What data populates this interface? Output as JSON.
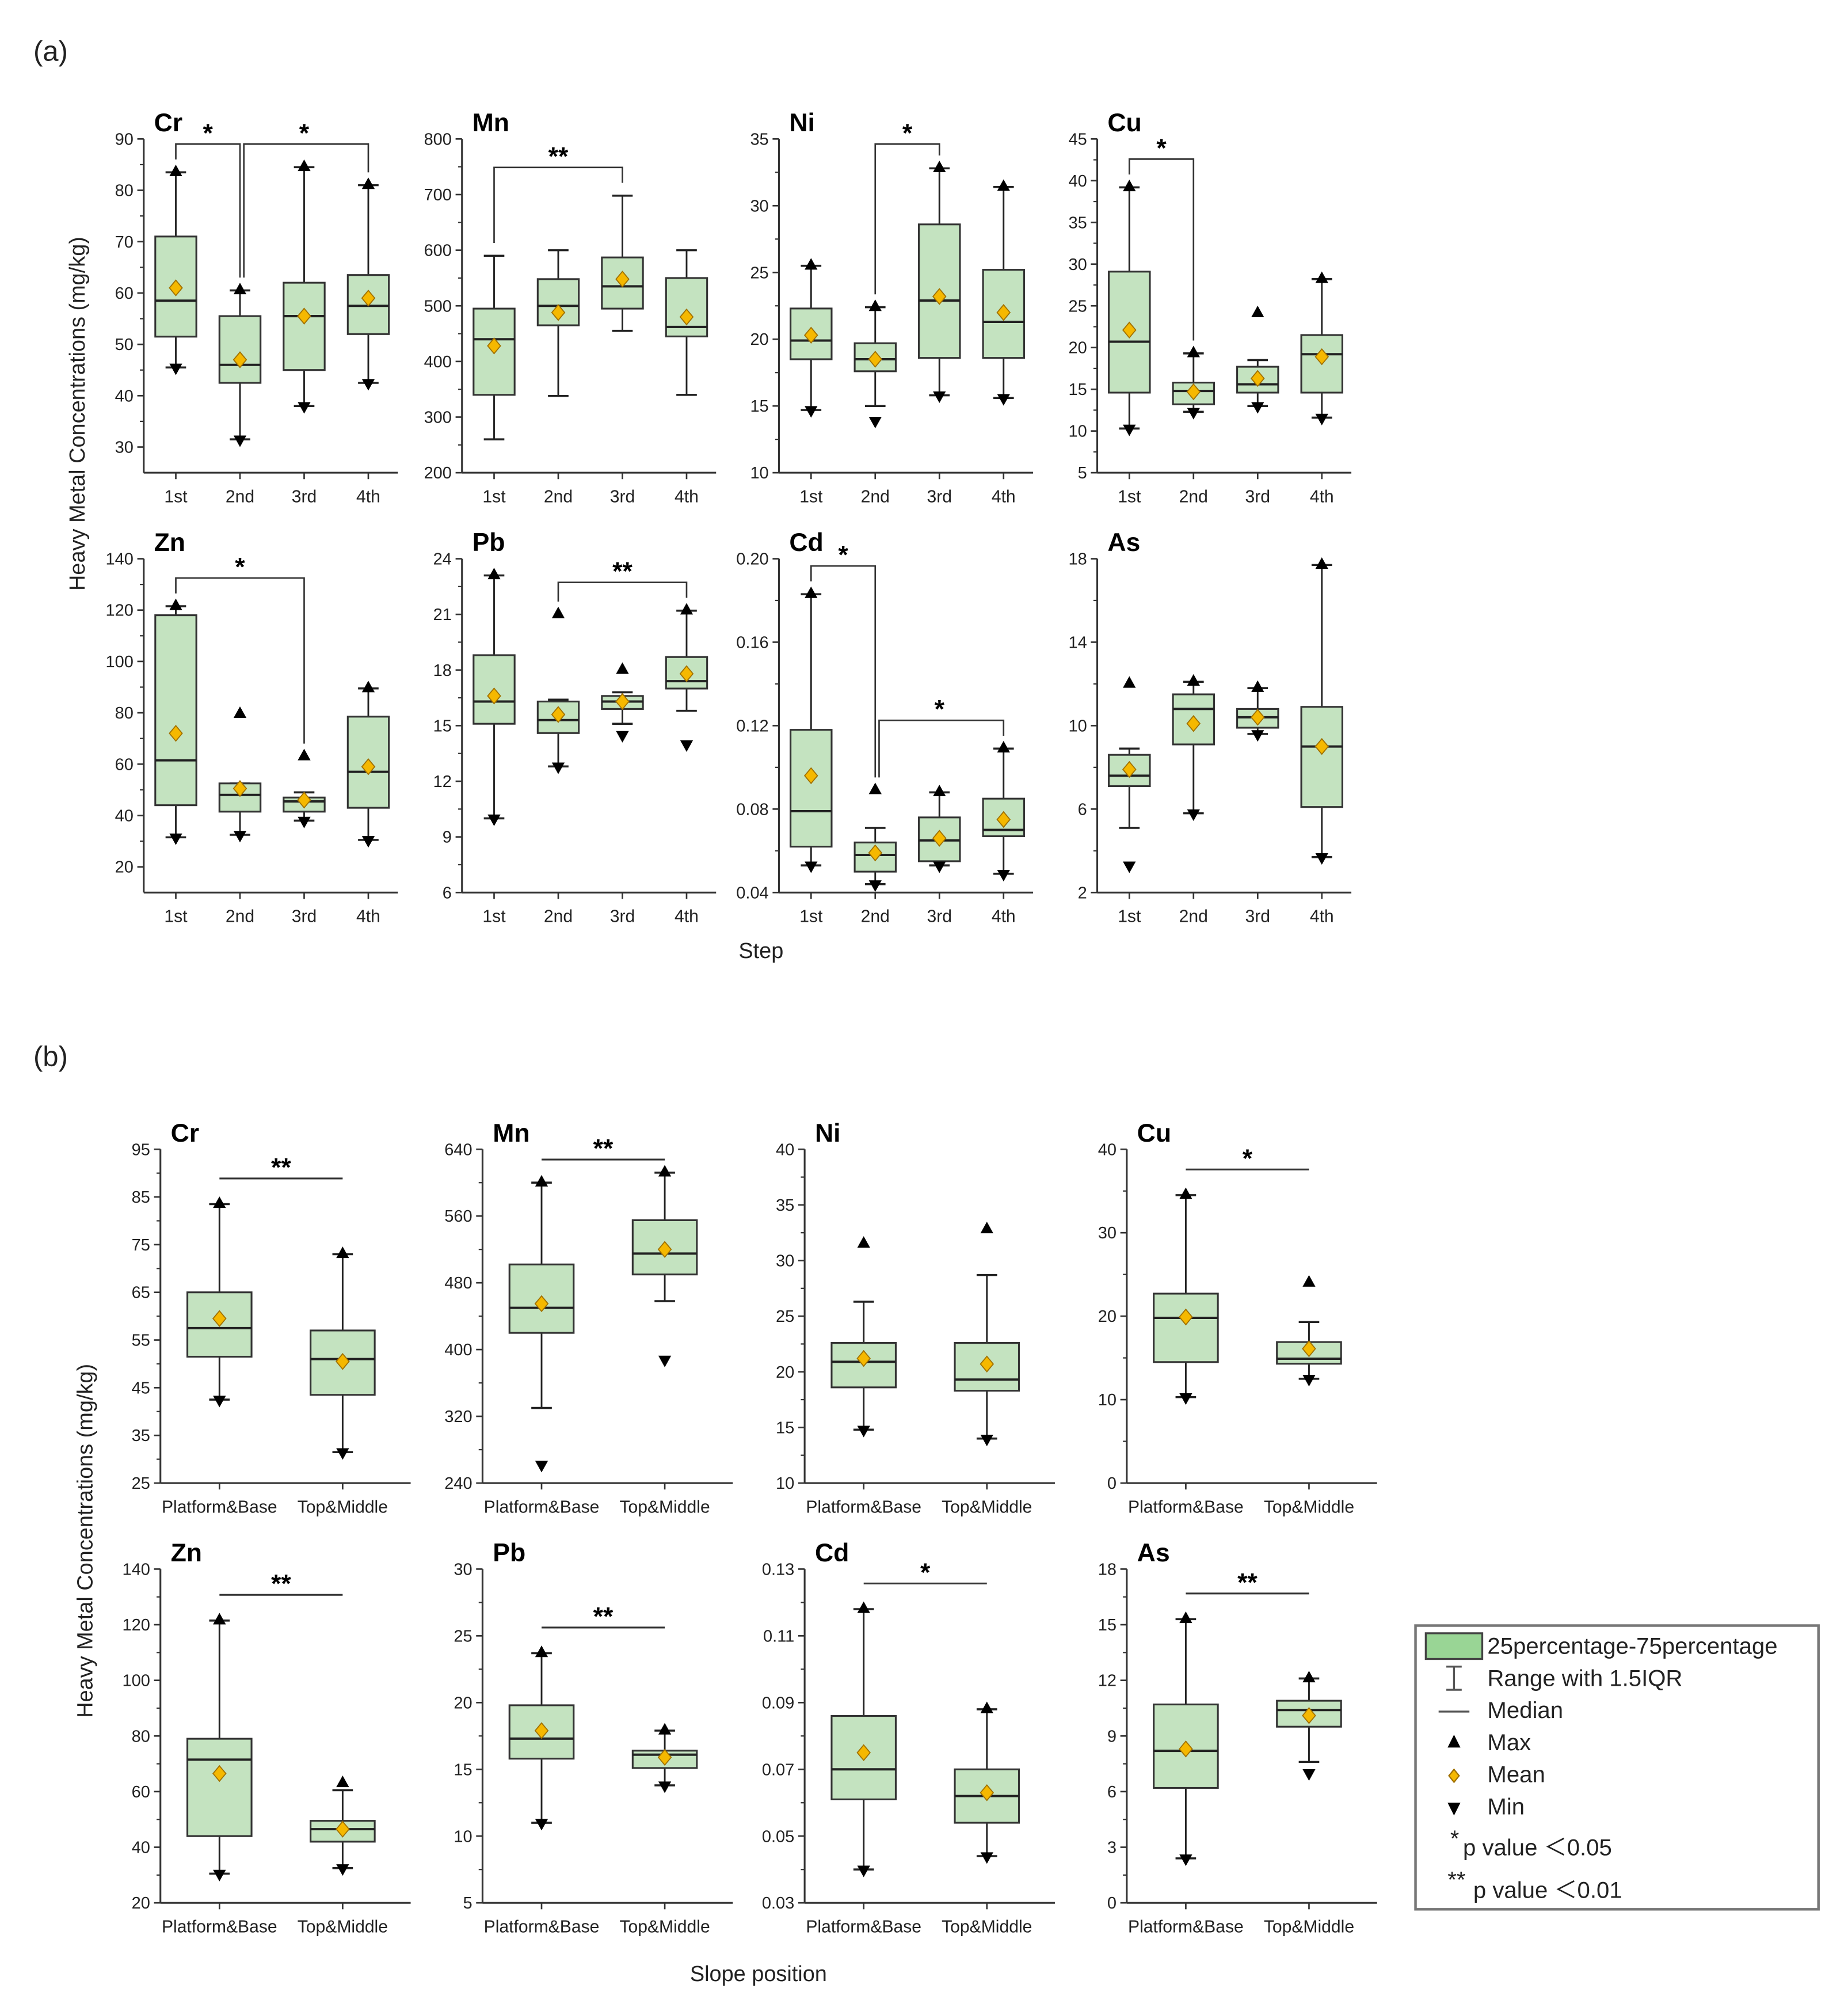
{
  "section_labels": {
    "a": "(a)",
    "b": "(b)"
  },
  "ylabel": "Heavy Metal Concentrations (mg/kg)",
  "legend": {
    "box": "25percentage-75percentage",
    "range": "Range with 1.5IQR",
    "median": "Median",
    "max": "Max",
    "mean": "Mean",
    "min": "Min",
    "p05_star": "*",
    "p05": "p value ＜0.05",
    "p01_star": "**",
    "p01": "p value ＜0.01"
  },
  "colors": {
    "box_fill": "#c4e3c0",
    "box_stroke": "#333333",
    "mean_fill": "#f5b800",
    "mean_stroke": "#a07000",
    "legend_swatch": "#99d595"
  },
  "chart_data": [
    {
      "type": "box",
      "panel": "a",
      "xlabel": "Step",
      "categories": [
        "1st",
        "2nd",
        "3rd",
        "4th"
      ],
      "box_fields": [
        "whisker_low",
        "q1",
        "median",
        "q3",
        "whisker_high",
        "mean",
        "max",
        "min"
      ],
      "subplots": [
        {
          "title": "Cr",
          "ylim": [
            25,
            90
          ],
          "ticks": [
            "30",
            "40",
            "50",
            "60",
            "70",
            "80",
            "90"
          ],
          "boxes": [
            [
              45.5,
              51.5,
              58.5,
              71,
              83.5,
              61,
              83.5,
              45.5
            ],
            [
              31.5,
              42.5,
              46,
              55.5,
              60.5,
              47,
              60.5,
              31.5
            ],
            [
              38,
              45,
              55.5,
              62,
              84.5,
              55.5,
              84.5,
              38
            ],
            [
              42.5,
              52,
              57.5,
              63.5,
              81,
              59,
              81,
              42.5
            ]
          ],
          "significance": [
            {
              "from": 0,
              "to": 1,
              "label": "*"
            },
            {
              "from": 1,
              "to": 3,
              "label": "*"
            }
          ]
        },
        {
          "title": "Mn",
          "ylim": [
            200,
            800
          ],
          "ticks": [
            "200",
            "300",
            "400",
            "500",
            "600",
            "700",
            "800"
          ],
          "boxes": [
            [
              260,
              340,
              440,
              495,
              590,
              428,
              null,
              null
            ],
            [
              338,
              465,
              500,
              548,
              600,
              488,
              null,
              null
            ],
            [
              455,
              495,
              535,
              587,
              698,
              548,
              null,
              null
            ],
            [
              340,
              445,
              462,
              550,
              600,
              480,
              null,
              null
            ]
          ],
          "significance": [
            {
              "from": 0,
              "to": 2,
              "label": "**"
            }
          ]
        },
        {
          "title": "Ni",
          "ylim": [
            10,
            35
          ],
          "ticks": [
            "10",
            "15",
            "20",
            "25",
            "30",
            "35"
          ],
          "boxes": [
            [
              14.7,
              18.5,
              19.9,
              22.3,
              25.5,
              20.3,
              25.5,
              14.7
            ],
            [
              15,
              17.6,
              18.5,
              19.7,
              22.4,
              18.5,
              22.4,
              13.9
            ],
            [
              15.8,
              18.6,
              22.9,
              28.6,
              32.8,
              23.2,
              32.8,
              15.8
            ],
            [
              15.6,
              18.6,
              21.3,
              25.2,
              31.4,
              22,
              31.4,
              15.6
            ]
          ],
          "significance": [
            {
              "from": 1,
              "to": 2,
              "label": "*"
            }
          ]
        },
        {
          "title": "Cu",
          "ylim": [
            5,
            45
          ],
          "ticks": [
            "5",
            "10",
            "15",
            "20",
            "25",
            "30",
            "35",
            "40",
            "45"
          ],
          "boxes": [
            [
              10.3,
              14.6,
              20.7,
              29.1,
              39.2,
              22.1,
              39.2,
              10.3
            ],
            [
              12.3,
              13.2,
              14.8,
              15.8,
              19.3,
              14.7,
              19.3,
              12.3
            ],
            [
              13,
              14.6,
              15.6,
              17.7,
              18.5,
              16.3,
              24.1,
              13
            ],
            [
              11.6,
              14.6,
              19.2,
              21.5,
              28.2,
              18.9,
              28.2,
              11.6
            ]
          ],
          "significance": [
            {
              "from": 0,
              "to": 1,
              "label": "*"
            }
          ]
        },
        {
          "title": "Zn",
          "ylim": [
            10,
            140
          ],
          "ticks": [
            "20",
            "40",
            "60",
            "80",
            "100",
            "120",
            "140"
          ],
          "boxes": [
            [
              31.5,
              44,
              61.5,
              118,
              121.5,
              72,
              121.5,
              31.5
            ],
            [
              32.5,
              41.5,
              48,
              52.5,
              52.5,
              50.5,
              79.5,
              32.5
            ],
            [
              38,
              41.5,
              45.5,
              47,
              49,
              46,
              63,
              38
            ],
            [
              30.5,
              43,
              57,
              78.5,
              89.5,
              59,
              89.5,
              30.5
            ]
          ],
          "significance": [
            {
              "from": 0,
              "to": 2,
              "label": "*"
            }
          ]
        },
        {
          "title": "Pb",
          "ylim": [
            6,
            24
          ],
          "ticks": [
            "6",
            "9",
            "12",
            "15",
            "18",
            "21",
            "24"
          ],
          "boxes": [
            [
              10,
              15.1,
              16.3,
              18.8,
              23.1,
              16.6,
              23.1,
              10
            ],
            [
              12.8,
              14.6,
              15.3,
              16.3,
              16.4,
              15.6,
              21,
              12.8
            ],
            [
              15.1,
              15.9,
              16.3,
              16.6,
              16.8,
              16.3,
              18,
              14.5
            ],
            [
              15.8,
              17,
              17.4,
              18.7,
              21.2,
              17.8,
              21.2,
              14
            ]
          ],
          "significance": [
            {
              "from": 1,
              "to": 3,
              "label": "**"
            }
          ]
        },
        {
          "title": "Cd",
          "ylim": [
            0.04,
            0.2
          ],
          "ticks": [
            "0.04",
            "0.08",
            "0.12",
            "0.16",
            "0.20"
          ],
          "boxes": [
            [
              0.053,
              0.062,
              0.079,
              0.118,
              0.183,
              0.096,
              0.183,
              0.053
            ],
            [
              0.044,
              0.05,
              0.058,
              0.064,
              0.071,
              0.059,
              0.089,
              0.044
            ],
            [
              0.053,
              0.055,
              0.065,
              0.076,
              0.088,
              0.066,
              0.088,
              0.053
            ],
            [
              0.049,
              0.067,
              0.07,
              0.085,
              0.109,
              0.075,
              0.109,
              0.049
            ]
          ],
          "significance": [
            {
              "from": 0,
              "to": 1,
              "label": "*"
            },
            {
              "from": 1,
              "to": 3,
              "label": "*"
            }
          ]
        },
        {
          "title": "As",
          "ylim": [
            2,
            18
          ],
          "ticks": [
            "2",
            "6",
            "10",
            "14",
            "18"
          ],
          "boxes": [
            [
              5.1,
              7.1,
              7.6,
              8.6,
              8.9,
              7.9,
              12,
              3.3
            ],
            [
              5.8,
              9.1,
              10.8,
              11.5,
              12.1,
              10.1,
              12.1,
              5.8
            ],
            [
              9.6,
              9.9,
              10.4,
              10.8,
              11.8,
              10.4,
              11.8,
              9.6
            ],
            [
              3.7,
              6.1,
              9.0,
              10.9,
              17.7,
              9.0,
              17.7,
              3.7
            ]
          ],
          "significance": []
        }
      ]
    },
    {
      "type": "box",
      "panel": "b",
      "xlabel": "Slope position",
      "categories": [
        "Platform&Base",
        "Top&Middle"
      ],
      "box_fields": [
        "whisker_low",
        "q1",
        "median",
        "q3",
        "whisker_high",
        "mean",
        "max",
        "min"
      ],
      "subplots": [
        {
          "title": "Cr",
          "ylim": [
            25,
            95
          ],
          "ticks": [
            "25",
            "35",
            "45",
            "55",
            "65",
            "75",
            "85",
            "95"
          ],
          "boxes": [
            [
              42.5,
              51.5,
              57.5,
              65,
              83.5,
              59.5,
              83.5,
              42.5
            ],
            [
              31.5,
              43.5,
              51,
              57,
              73,
              50.5,
              73,
              31.5
            ]
          ],
          "significance": [
            {
              "from": 0,
              "to": 1,
              "label": "**"
            }
          ]
        },
        {
          "title": "Mn",
          "ylim": [
            240,
            640
          ],
          "ticks": [
            "240",
            "320",
            "400",
            "480",
            "560",
            "640"
          ],
          "boxes": [
            [
              330,
              420,
              450,
              502,
              600,
              455,
              600,
              262
            ],
            [
              458,
              490,
              515,
              555,
              612,
              520,
              612,
              388
            ]
          ],
          "significance": [
            {
              "from": 0,
              "to": 1,
              "label": "**"
            }
          ]
        },
        {
          "title": "Ni",
          "ylim": [
            10,
            40
          ],
          "ticks": [
            "10",
            "15",
            "20",
            "25",
            "30",
            "35",
            "40"
          ],
          "boxes": [
            [
              14.8,
              18.6,
              20.9,
              22.6,
              26.3,
              21.2,
              31.5,
              14.8
            ],
            [
              14,
              18.3,
              19.3,
              22.6,
              28.7,
              20.7,
              32.8,
              14
            ]
          ],
          "significance": []
        },
        {
          "title": "Cu",
          "ylim": [
            0,
            40
          ],
          "ticks": [
            "0",
            "10",
            "20",
            "30",
            "40"
          ],
          "boxes": [
            [
              10.3,
              14.5,
              19.8,
              22.7,
              34.5,
              19.9,
              34.5,
              10.3
            ],
            [
              12.5,
              14.3,
              14.9,
              16.9,
              19.3,
              16.1,
              24,
              12.5
            ]
          ],
          "significance": [
            {
              "from": 0,
              "to": 1,
              "label": "*"
            }
          ]
        },
        {
          "title": "Zn",
          "ylim": [
            20,
            140
          ],
          "ticks": [
            "20",
            "40",
            "60",
            "80",
            "100",
            "120",
            "140"
          ],
          "boxes": [
            [
              30.5,
              44,
              71.5,
              79,
              121.5,
              66.5,
              121.5,
              30.5
            ],
            [
              32.5,
              42,
              46.5,
              49.5,
              60.5,
              46.5,
              63,
              32.5
            ]
          ],
          "significance": [
            {
              "from": 0,
              "to": 1,
              "label": "**"
            }
          ]
        },
        {
          "title": "Pb",
          "ylim": [
            5,
            30
          ],
          "ticks": [
            "5",
            "10",
            "15",
            "20",
            "25",
            "30"
          ],
          "boxes": [
            [
              11,
              15.8,
              17.3,
              19.8,
              23.7,
              17.9,
              23.7,
              11
            ],
            [
              13.8,
              15.1,
              16.1,
              16.4,
              17.9,
              15.9,
              17.9,
              13.8
            ]
          ],
          "significance": [
            {
              "from": 0,
              "to": 1,
              "label": "**"
            }
          ]
        },
        {
          "title": "Cd",
          "ylim": [
            0.03,
            0.13
          ],
          "ticks": [
            "0.03",
            "0.05",
            "0.07",
            "0.09",
            "0.11",
            "0.13"
          ],
          "boxes": [
            [
              0.04,
              0.061,
              0.07,
              0.086,
              0.118,
              0.075,
              0.118,
              0.04
            ],
            [
              0.044,
              0.054,
              0.062,
              0.07,
              0.088,
              0.063,
              0.088,
              0.044
            ]
          ],
          "significance": [
            {
              "from": 0,
              "to": 1,
              "label": "*"
            }
          ]
        },
        {
          "title": "As",
          "ylim": [
            0,
            18
          ],
          "ticks": [
            "0",
            "3",
            "6",
            "9",
            "12",
            "15",
            "18"
          ],
          "boxes": [
            [
              2.4,
              6.2,
              8.2,
              10.7,
              15.3,
              8.3,
              15.3,
              2.4
            ],
            [
              7.6,
              9.5,
              10.4,
              10.9,
              12.1,
              10.1,
              12.1,
              7.0
            ]
          ],
          "significance": [
            {
              "from": 0,
              "to": 1,
              "label": "**"
            }
          ]
        }
      ]
    }
  ]
}
